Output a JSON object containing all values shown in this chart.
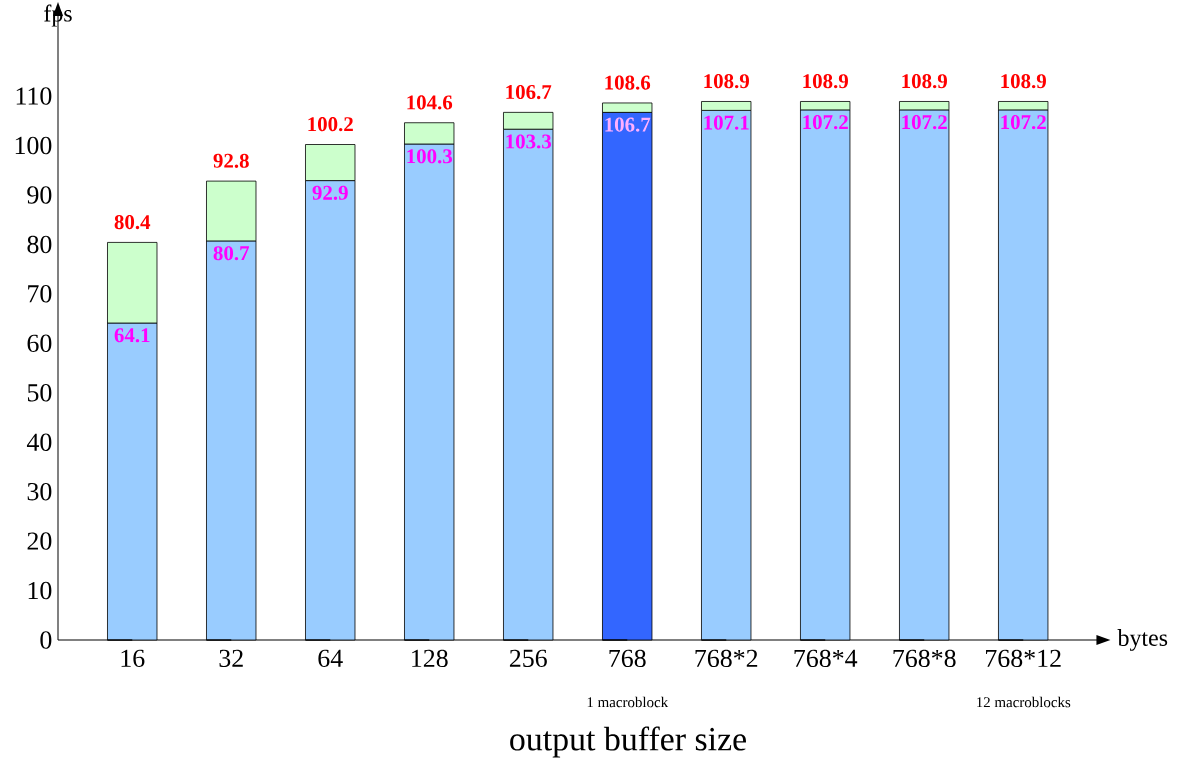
{
  "chart_data": {
    "type": "bar",
    "title": "output buffer size",
    "xlabel": "bytes",
    "ylabel": "fps",
    "categories": [
      "16",
      "32",
      "64",
      "128",
      "256",
      "768",
      "768*2",
      "768*4",
      "768*8",
      "768*12"
    ],
    "stacked": true,
    "series": [
      {
        "colors": [
          "#99ccff",
          "#99ccff",
          "#99ccff",
          "#99ccff",
          "#99ccff",
          "#3366ff",
          "#99ccff",
          "#99ccff",
          "#99ccff",
          "#99ccff"
        ],
        "values": [
          64.1,
          80.7,
          92.9,
          100.3,
          103.3,
          106.7,
          107.1,
          107.2,
          107.2,
          107.2
        ],
        "value_labels": [
          "64.1",
          "80.7",
          "92.9",
          "100.3",
          "103.3",
          "106.7",
          "107.1",
          "107.2",
          "107.2",
          "107.2"
        ]
      },
      {
        "color": "#ccffcc",
        "values": [
          16.3,
          12.1,
          7.3,
          4.3,
          3.4,
          1.9,
          1.8,
          1.7,
          1.7,
          1.7
        ]
      }
    ],
    "totals": [
      "80.4",
      "92.8",
      "100.2",
      "104.6",
      "106.7",
      "108.6",
      "108.9",
      "108.9",
      "108.9",
      "108.9"
    ],
    "annotations": [
      "1 macroblock",
      "12 macroblocks"
    ],
    "ylim": [
      0,
      127
    ],
    "yticks": [
      0,
      10,
      20,
      30,
      40,
      50,
      60,
      70,
      80,
      90,
      100,
      110
    ],
    "grid": false
  }
}
